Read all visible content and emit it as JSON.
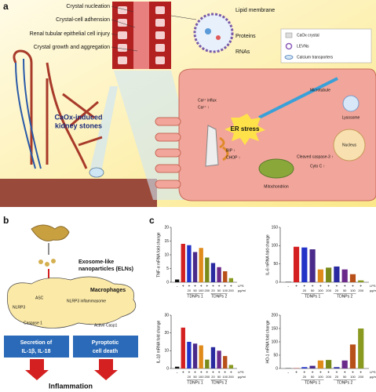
{
  "panel_a": {
    "label": "a",
    "tube_labels": [
      "Crystal nucleation",
      "Crystal-cell adhension",
      "Renal tubular epithelial cell injury",
      "Crystal growth and aggregation"
    ],
    "vesicle_labels": [
      "Lipid membrane",
      "Proteins",
      "RNAs"
    ],
    "legend": [
      "CaOx crystal",
      "LEVNs",
      "Calcium transporters"
    ],
    "kidney_label": [
      "CaOx-induced",
      "kidney stones"
    ],
    "cell_labels": {
      "ca_influx": "Ca²⁺ influx",
      "ca": "Ca²⁺ ↑",
      "microtubule": "Microtubule",
      "er_stress": "ER stress",
      "bip": "BIP ↑",
      "chop": "CHOP ↑",
      "lysosome": "Lysosome",
      "caspase": "Cleaved caspase-3 ↑",
      "cyto_c": "Cyto C ↑",
      "nucleus": "Nucleus",
      "mitochondrion": "Mitochondrion"
    }
  },
  "panel_b": {
    "label": "b",
    "elns": [
      "Exosome-like",
      "nanoparticles (ELNs)"
    ],
    "macrophages": "Macrophages",
    "inflammasome": "NLRP3 inflammasome",
    "asc": "ASC",
    "nlrp3": "NLRP3",
    "caspase1": "Caspase 1",
    "active": "Active Casp1",
    "box1": [
      "Secretion of",
      "IL-1β, IL-18"
    ],
    "box2": [
      "Pyroptotic",
      "cell death"
    ],
    "outcome": "Inflammation"
  },
  "panel_c_label": "c",
  "chart_data": [
    {
      "type": "bar",
      "y_label": "TNF-α mRNA fold change",
      "categories": [
        null,
        null,
        "20",
        "50",
        "100",
        "200",
        "20",
        "50",
        "100",
        "200"
      ],
      "lps": [
        "-",
        "+",
        "+",
        "+",
        "+",
        "+",
        "+",
        "+",
        "+",
        "+"
      ],
      "lps_label": "LPS",
      "unit": "μg/ml",
      "groups": [
        "TDNPs 1",
        "TDNPs 2"
      ],
      "values": [
        1,
        14,
        13.5,
        11,
        12.5,
        9,
        7,
        5.5,
        4,
        1.5
      ],
      "colors": [
        "#111111",
        "#d42020",
        "#2233c8",
        "#4a2a8a",
        "#e08a1a",
        "#7a8a1a",
        "#2a2aa0",
        "#6a2a8a",
        "#b8501a",
        "#8a9a20"
      ],
      "ylim": [
        0,
        20
      ],
      "yticks": [
        0,
        5,
        10,
        15,
        20
      ]
    },
    {
      "type": "bar",
      "y_label": "IL-6 mRNA fold change",
      "categories": [
        null,
        null,
        "20",
        "50",
        "100",
        "200",
        "20",
        "50",
        "100",
        "200"
      ],
      "lps": [
        "-",
        "+",
        "+",
        "+",
        "+",
        "+",
        "+",
        "+",
        "+",
        "+"
      ],
      "lps_label": "LPS",
      "unit": "μg/ml",
      "groups": [
        "TDNPs 1",
        "TDNPs 2"
      ],
      "values": [
        1,
        97,
        95,
        90,
        35,
        40,
        43,
        35,
        22,
        5
      ],
      "colors": [
        "#111111",
        "#d42020",
        "#2233c8",
        "#4a2a8a",
        "#e08a1a",
        "#7a8a1a",
        "#2a2aa0",
        "#6a2a8a",
        "#b8501a",
        "#8a9a20"
      ],
      "ylim": [
        0,
        150
      ],
      "yticks": [
        0,
        50,
        100,
        150
      ]
    },
    {
      "type": "bar",
      "y_label": "IL-1β mRNA fold change",
      "categories": [
        null,
        null,
        "20",
        "50",
        "100",
        "200",
        "20",
        "50",
        "100",
        "200"
      ],
      "lps": [
        "-",
        "+",
        "+",
        "+",
        "+",
        "+",
        "+",
        "+",
        "+",
        "+"
      ],
      "lps_label": "LPS",
      "unit": "μg/ml",
      "groups": [
        "TDNPs 1",
        "TDNPs 2"
      ],
      "values": [
        1,
        23,
        15,
        14,
        13,
        5,
        12,
        10,
        7,
        2
      ],
      "colors": [
        "#111111",
        "#d42020",
        "#2233c8",
        "#4a2a8a",
        "#e08a1a",
        "#7a8a1a",
        "#2a2aa0",
        "#6a2a8a",
        "#b8501a",
        "#8a9a20"
      ],
      "ylim": [
        0,
        30
      ],
      "yticks": [
        0,
        10,
        20,
        30
      ]
    },
    {
      "type": "bar",
      "y_label": "HO-1 mRNA fold change",
      "categories": [
        null,
        null,
        "20",
        "50",
        "100",
        "200",
        "20",
        "50",
        "100",
        "200"
      ],
      "lps": [
        "-",
        "+",
        "+",
        "+",
        "+",
        "+",
        "+",
        "+",
        "+",
        "+"
      ],
      "lps_label": "LPS",
      "unit": "μg/ml",
      "groups": [
        "TDNPs 1",
        "TDNPs 2"
      ],
      "values": [
        1,
        1,
        5,
        10,
        30,
        32,
        5,
        30,
        90,
        150
      ],
      "colors": [
        "#111111",
        "#d42020",
        "#2233c8",
        "#4a2a8a",
        "#e08a1a",
        "#7a8a1a",
        "#2a2aa0",
        "#6a2a8a",
        "#b8501a",
        "#8a9a20"
      ],
      "ylim": [
        0,
        200
      ],
      "yticks": [
        0,
        50,
        100,
        150,
        200
      ]
    }
  ]
}
